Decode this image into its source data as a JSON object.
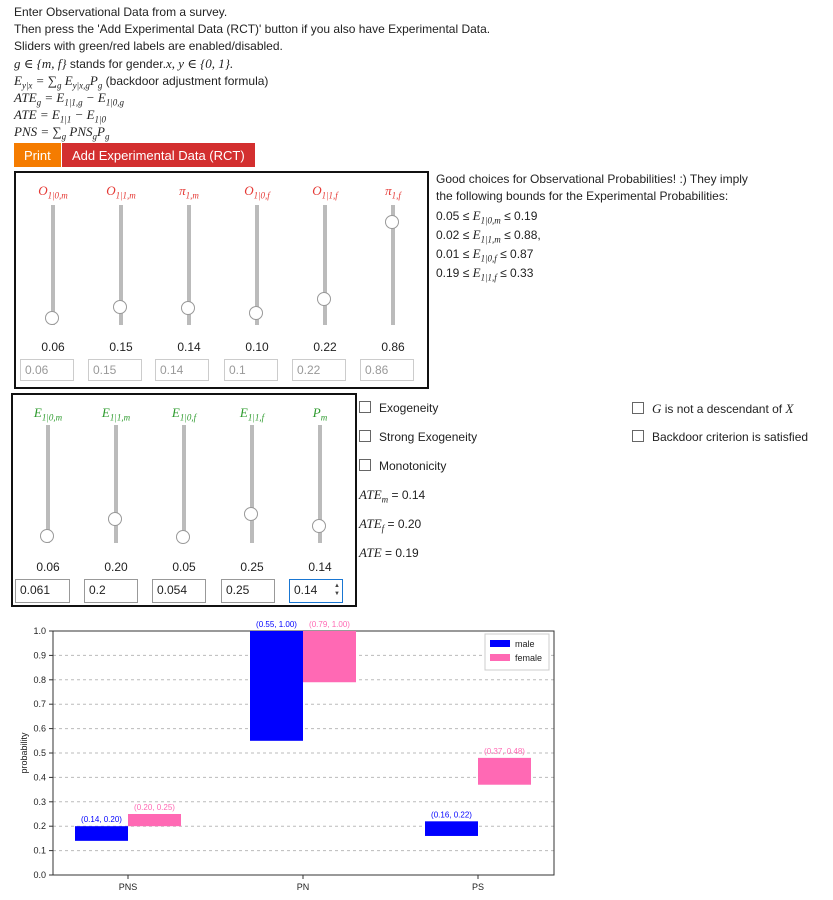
{
  "intro": {
    "line1": "Enter Observational Data from a survey.",
    "line2": "Then press the 'Add Experimental Data (RCT)' button if you also have Experimental Data.",
    "line3": "Sliders with green/red labels are enabled/disabled.",
    "line4_math": "g ∈ {m, f}",
    "line4_text": " stands for gender.",
    "line4_math2": "x, y ∈ {0, 1}.",
    "line5_math": "E",
    "line5_text": " (backdoor adjustment formula)"
  },
  "buttons": {
    "print": "Print",
    "add_rct": "Add Experimental Data (RCT)"
  },
  "observational": {
    "sliders": [
      {
        "label": "O",
        "sub": "1|0,m",
        "value": "0.06",
        "input": "0.06",
        "level": 0.06
      },
      {
        "label": "O",
        "sub": "1|1,m",
        "value": "0.15",
        "input": "0.15",
        "level": 0.15
      },
      {
        "label": "π",
        "sub": "1,m",
        "value": "0.14",
        "input": "0.14",
        "level": 0.14
      },
      {
        "label": "O",
        "sub": "1|0,f",
        "value": "0.10",
        "input": "0.1",
        "level": 0.1
      },
      {
        "label": "O",
        "sub": "1|1,f",
        "value": "0.22",
        "input": "0.22",
        "level": 0.22
      },
      {
        "label": "π",
        "sub": "1,f",
        "value": "0.86",
        "input": "0.86",
        "level": 0.86
      }
    ]
  },
  "bounds": {
    "line1": "Good choices for Observational Probabilities! :) They imply",
    "line2": "the following bounds for the Experimental Probabilities:",
    "items": [
      {
        "lo": "0.05 ≤ ",
        "var": "E",
        "sub": "1|0,m",
        "hi": " ≤ 0.19"
      },
      {
        "lo": "0.02 ≤ ",
        "var": "E",
        "sub": "1|1,m",
        "hi": " ≤ 0.88,"
      },
      {
        "lo": "0.01 ≤ ",
        "var": "E",
        "sub": "1|0,f",
        "hi": " ≤ 0.87"
      },
      {
        "lo": "0.19 ≤ ",
        "var": "E",
        "sub": "1|1,f",
        "hi": " ≤ 0.33"
      }
    ]
  },
  "experimental": {
    "sliders": [
      {
        "label": "E",
        "sub": "1|0,m",
        "value": "0.06",
        "input": "0.061",
        "level": 0.06
      },
      {
        "label": "E",
        "sub": "1|1,m",
        "value": "0.20",
        "input": "0.2",
        "level": 0.2
      },
      {
        "label": "E",
        "sub": "1|0,f",
        "value": "0.05",
        "input": "0.054",
        "level": 0.05
      },
      {
        "label": "E",
        "sub": "1|1,f",
        "value": "0.25",
        "input": "0.25",
        "level": 0.25
      },
      {
        "label": "P",
        "sub": "m",
        "value": "0.14",
        "input": "0.14",
        "level": 0.14
      }
    ]
  },
  "checks": {
    "exogeneity": "Exogeneity",
    "strong_exogeneity": "Strong Exogeneity",
    "monotonicity": "Monotonicity",
    "g_desc_text": " is not a descendant of ",
    "backdoor": "Backdoor criterion is satisfied"
  },
  "ate": {
    "m_value": " = 0.14",
    "f_value": " = 0.20",
    "all_value": " = 0.19"
  },
  "colors": {
    "male": "#0000ff",
    "female": "#ff69b4",
    "print": "#f57c00",
    "rct": "#d32f2f"
  },
  "chart_data": {
    "type": "bar",
    "categories": [
      "PNS",
      "PN",
      "PS"
    ],
    "ylabel": "probability",
    "ylim": [
      0,
      1.0
    ],
    "yticks": [
      "0.0",
      "0.1",
      "0.2",
      "0.3",
      "0.4",
      "0.5",
      "0.6",
      "0.7",
      "0.8",
      "0.9",
      "1.0"
    ],
    "grid": true,
    "legend_position": "top-right",
    "series": [
      {
        "name": "male",
        "color": "#0000ff",
        "ranges": [
          [
            0.14,
            0.2
          ],
          [
            0.55,
            1.0
          ],
          [
            0.16,
            0.22
          ]
        ],
        "labels": [
          "(0.14, 0.20)",
          "(0.55, 1.00)",
          "(0.16, 0.22)"
        ]
      },
      {
        "name": "female",
        "color": "#ff69b4",
        "ranges": [
          [
            0.2,
            0.25
          ],
          [
            0.79,
            1.0
          ],
          [
            0.37,
            0.48
          ]
        ],
        "labels": [
          "(0.20, 0.25)",
          "(0.79, 1.00)",
          "(0.37, 0.48)"
        ]
      }
    ]
  }
}
